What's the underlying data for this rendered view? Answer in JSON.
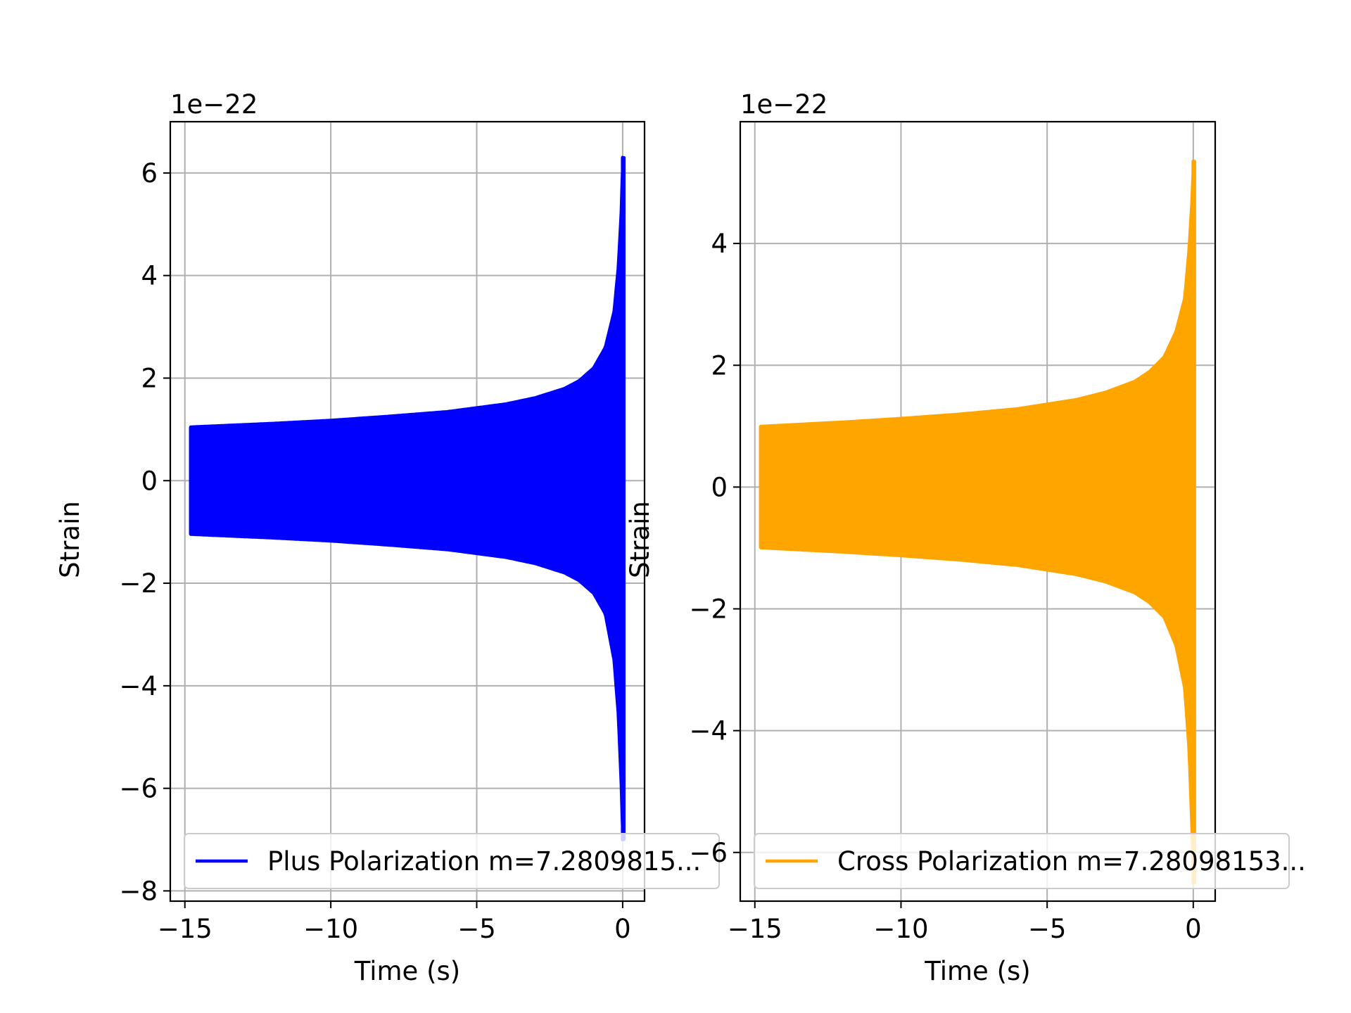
{
  "chart_data": [
    {
      "type": "line",
      "xlabel": "Time (s)",
      "ylabel": "Strain",
      "y_offset_text": "1e−22",
      "xlim": [
        -15.5,
        0.75
      ],
      "ylim": [
        -8.2,
        7.0
      ],
      "y_scale_exponent": -22,
      "xticks": [
        -15,
        -10,
        -5,
        0
      ],
      "xtick_labels": [
        "−15",
        "−10",
        "−5",
        "0"
      ],
      "yticks": [
        -8,
        -6,
        -4,
        -2,
        0,
        2,
        4,
        6
      ],
      "ytick_labels": [
        "−8",
        "−6",
        "−4",
        "−2",
        "0",
        "2",
        "4",
        "6"
      ],
      "grid": true,
      "legend_position": "lower left",
      "series": [
        {
          "name": "Plus Polarization m=7.2809815...",
          "color": "#0000ff",
          "t_start": -14.8,
          "t_end": 0.05,
          "envelope": {
            "t": [
              -14.8,
              -12,
              -10,
              -8,
              -6,
              -4,
              -3,
              -2,
              -1.5,
              -1,
              -0.6,
              -0.3,
              -0.15,
              -0.05,
              0.0
            ],
            "upper": [
              1.05,
              1.12,
              1.18,
              1.26,
              1.35,
              1.5,
              1.62,
              1.8,
              1.95,
              2.2,
              2.6,
              3.3,
              4.2,
              5.3,
              6.3
            ],
            "lower": [
              -1.05,
              -1.12,
              -1.18,
              -1.26,
              -1.35,
              -1.5,
              -1.62,
              -1.8,
              -1.95,
              -2.2,
              -2.6,
              -3.5,
              -4.6,
              -6.0,
              -7.0
            ]
          }
        }
      ]
    },
    {
      "type": "line",
      "xlabel": "Time (s)",
      "ylabel": "Strain",
      "y_offset_text": "1e−22",
      "xlim": [
        -15.5,
        0.75
      ],
      "ylim": [
        -6.8,
        6.0
      ],
      "y_scale_exponent": -22,
      "xticks": [
        -15,
        -10,
        -5,
        0
      ],
      "xtick_labels": [
        "−15",
        "−10",
        "−5",
        "0"
      ],
      "yticks": [
        -6,
        -4,
        -2,
        0,
        2,
        4
      ],
      "ytick_labels": [
        "−6",
        "−4",
        "−2",
        "0",
        "2",
        "4"
      ],
      "grid": true,
      "legend_position": "lower left",
      "series": [
        {
          "name": "Cross Polarization m=7.28098153...",
          "color": "#ffa500",
          "t_start": -14.8,
          "t_end": 0.05,
          "envelope": {
            "t": [
              -14.8,
              -12,
              -10,
              -8,
              -6,
              -4,
              -3,
              -2,
              -1.5,
              -1,
              -0.6,
              -0.3,
              -0.15,
              -0.05,
              0.0
            ],
            "upper": [
              1.0,
              1.07,
              1.13,
              1.2,
              1.29,
              1.44,
              1.56,
              1.74,
              1.9,
              2.14,
              2.55,
              3.1,
              3.9,
              4.7,
              5.35
            ],
            "lower": [
              -1.0,
              -1.07,
              -1.13,
              -1.2,
              -1.29,
              -1.44,
              -1.56,
              -1.74,
              -1.9,
              -2.14,
              -2.6,
              -3.3,
              -4.3,
              -5.6,
              -6.5
            ]
          }
        }
      ]
    }
  ]
}
